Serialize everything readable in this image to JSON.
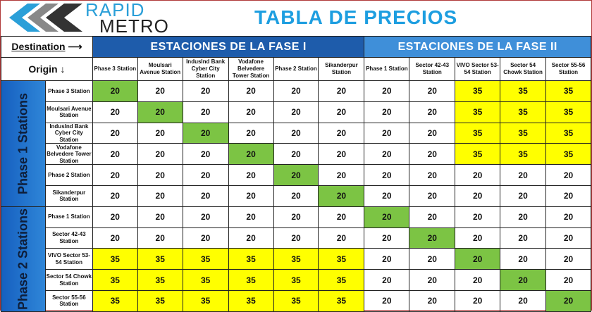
{
  "logo": {
    "line1": "RAPID",
    "line2": "METRO"
  },
  "title": "TABLA DE PRECIOS",
  "corner": {
    "destination": "Destination",
    "origin": "Origin"
  },
  "phase_headers": [
    "ESTACIONES DE LA FASE I",
    "ESTACIONES DE LA FASE II"
  ],
  "row_groups": [
    "Phase 1 Stations",
    "Phase 2 Stations"
  ],
  "stations": [
    "Phase 3  Station",
    "Moulsari Avenue  Station",
    "IndusInd Bank Cyber City Station",
    "Vodafone Belvedere Tower  Station",
    "Phase 2  Station",
    "Sikanderpur Station",
    "Phase 1  Station",
    "Sector 42-43 Station",
    "VIVO Sector 53-54 Station",
    "Sector 54 Chowk  Station",
    "Sector 55-56 Station"
  ],
  "fares": [
    [
      "20",
      "20",
      "20",
      "20",
      "20",
      "20",
      "20",
      "20",
      "35",
      "35",
      "35"
    ],
    [
      "20",
      "20",
      "20",
      "20",
      "20",
      "20",
      "20",
      "20",
      "35",
      "35",
      "35"
    ],
    [
      "20",
      "20",
      "20",
      "20",
      "20",
      "20",
      "20",
      "20",
      "35",
      "35",
      "35"
    ],
    [
      "20",
      "20",
      "20",
      "20",
      "20",
      "20",
      "20",
      "20",
      "35",
      "35",
      "35"
    ],
    [
      "20",
      "20",
      "20",
      "20",
      "20",
      "20",
      "20",
      "20",
      "20",
      "20",
      "20"
    ],
    [
      "20",
      "20",
      "20",
      "20",
      "20",
      "20",
      "20",
      "20",
      "20",
      "20",
      "20"
    ],
    [
      "20",
      "20",
      "20",
      "20",
      "20",
      "20",
      "20",
      "20",
      "20",
      "20",
      "20"
    ],
    [
      "20",
      "20",
      "20",
      "20",
      "20",
      "20",
      "20",
      "20",
      "20",
      "20",
      "20"
    ],
    [
      "35",
      "35",
      "35",
      "35",
      "35",
      "35",
      "20",
      "20",
      "20",
      "20",
      "20"
    ],
    [
      "35",
      "35",
      "35",
      "35",
      "35",
      "35",
      "20",
      "20",
      "20",
      "20",
      "20"
    ],
    [
      "35",
      "35",
      "35",
      "35",
      "35",
      "35",
      "20",
      "20",
      "20",
      "20",
      "20"
    ]
  ],
  "colors": {
    "same_station": "#7cc444",
    "higher_fare": "#ffff00",
    "phase1_header": "#1e5cab",
    "phase2_header": "#3f8fd9"
  }
}
